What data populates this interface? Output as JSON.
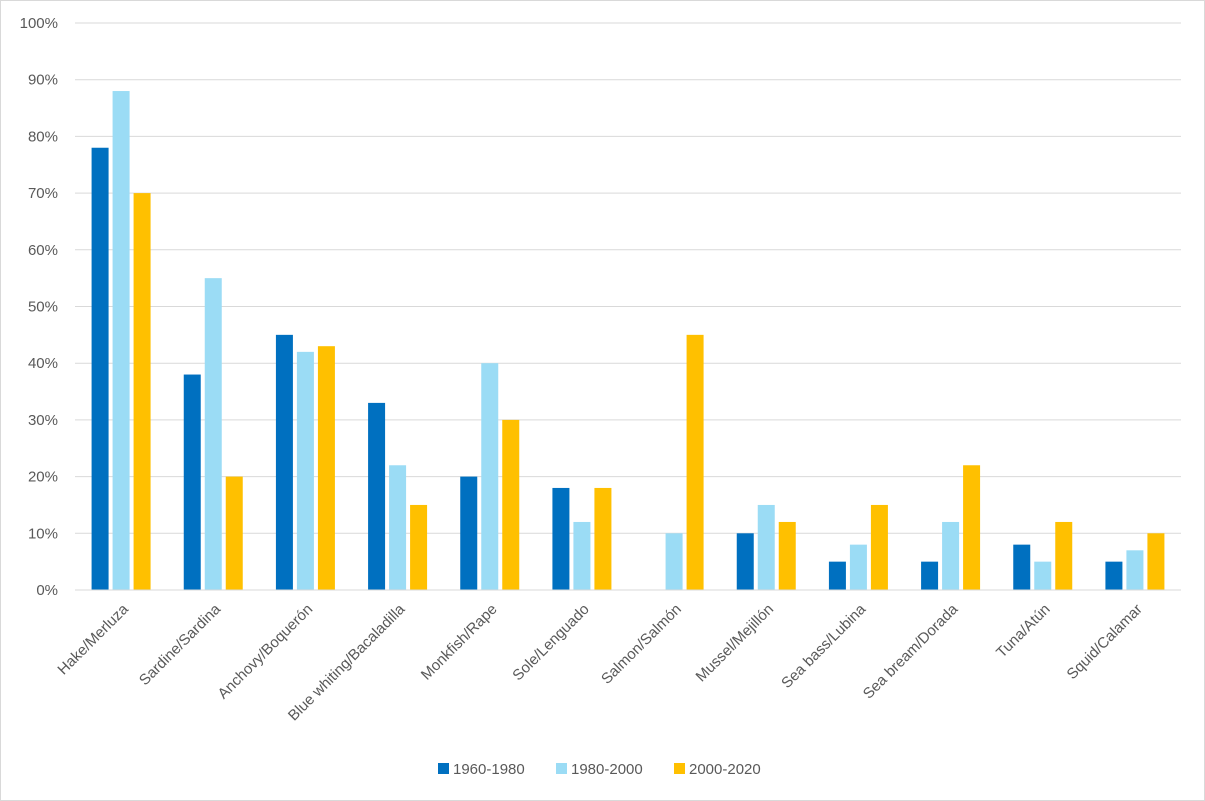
{
  "chart_data": {
    "type": "bar",
    "title": "",
    "xlabel": "",
    "ylabel": "",
    "ylim": [
      0,
      100
    ],
    "yticks": [
      0,
      10,
      20,
      30,
      40,
      50,
      60,
      70,
      80,
      90,
      100
    ],
    "ytick_format": "percent",
    "grid": true,
    "legend_position": "bottom",
    "categories": [
      "Hake/Merluza",
      "Sardine/Sardina",
      "Anchovy/Boquerón",
      "Blue whiting/Bacaladilla",
      "Monkfish/Rape",
      "Sole/Lenguado",
      "Salmon/Salmón",
      "Mussel/Mejillón",
      "Sea bass/Lubina",
      "Sea bream/Dorada",
      "Tuna/Atún",
      "Squid/Calamar"
    ],
    "series": [
      {
        "name": "1960-1980",
        "color": "#0070c0",
        "values": [
          78,
          38,
          45,
          33,
          20,
          18,
          0,
          10,
          5,
          5,
          8,
          5
        ]
      },
      {
        "name": "1980-2000",
        "color": "#9bdcf5",
        "values": [
          88,
          55,
          42,
          22,
          40,
          12,
          10,
          15,
          8,
          12,
          5,
          7
        ]
      },
      {
        "name": "2000-2020",
        "color": "#ffc000",
        "values": [
          70,
          20,
          43,
          15,
          30,
          18,
          45,
          12,
          15,
          22,
          12,
          10
        ]
      }
    ]
  }
}
